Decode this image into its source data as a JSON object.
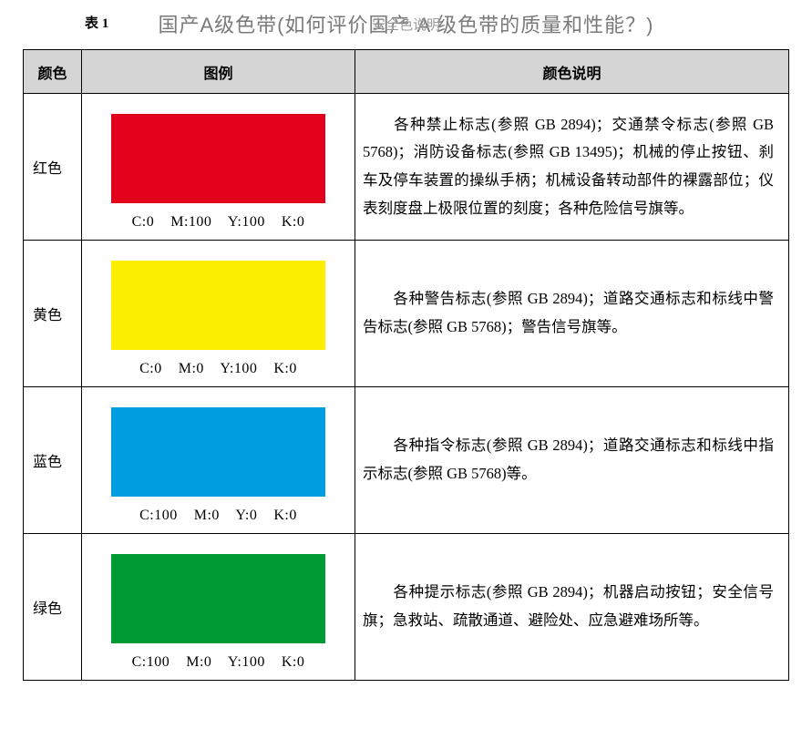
{
  "header": {
    "table_number": "表 1",
    "title": "国产A级色带(如何评价国产 A 级色带的质量和性能？)",
    "ghost": "安全色说明"
  },
  "columns": {
    "col1": "颜色",
    "col2": "图例",
    "col3": "颜色说明"
  },
  "rows": [
    {
      "name": "红色",
      "swatch_color": "#e3001b",
      "cmyk": "C:0    M:100    Y:100    K:0",
      "desc": "各种禁止标志(参照 GB 2894)；交通禁令标志(参照 GB 5768)；消防设备标志(参照 GB 13495)；机械的停止按钮、刹车及停车装置的操纵手柄；机械设备转动部件的裸露部位；仪表刻度盘上极限位置的刻度；各种危险信号旗等。"
    },
    {
      "name": "黄色",
      "swatch_color": "#fcee00",
      "cmyk": "C:0    M:0    Y:100    K:0",
      "desc": "各种警告标志(参照 GB 2894)；道路交通标志和标线中警告标志(参照 GB 5768)；警告信号旗等。"
    },
    {
      "name": "蓝色",
      "swatch_color": "#009ee0",
      "cmyk": "C:100    M:0    Y:0    K:0",
      "desc": "各种指令标志(参照 GB 2894)；道路交通标志和标线中指示标志(参照 GB 5768)等。"
    },
    {
      "name": "绿色",
      "swatch_color": "#009a33",
      "cmyk": "C:100    M:0    Y:100    K:0",
      "desc": "各种提示标志(参照 GB 2894)；机器启动按钮；安全信号旗；急救站、疏散通道、避险处、应急避难场所等。"
    }
  ]
}
